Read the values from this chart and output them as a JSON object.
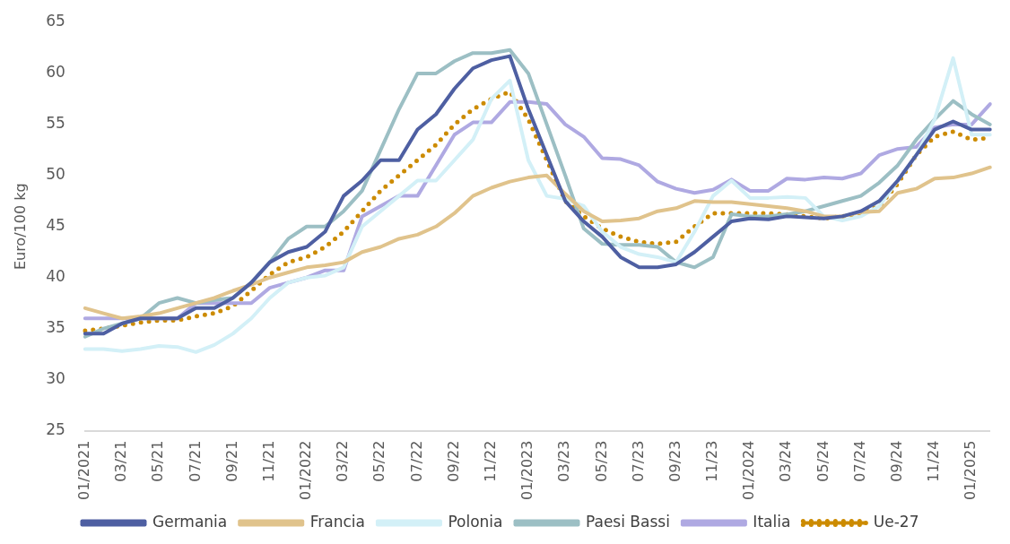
{
  "chart_data": {
    "type": "line",
    "ylabel": "Euro/100 kg",
    "categories": [
      "01/2021",
      null,
      "03/21",
      null,
      "05/21",
      null,
      "07/21",
      null,
      "09/21",
      null,
      "11/21",
      null,
      "01/2022",
      null,
      "03/22",
      null,
      "05/22",
      null,
      "07/22",
      null,
      "09/22",
      null,
      "11/22",
      null,
      "01/2023",
      null,
      "03/23",
      null,
      "05/23",
      null,
      "07/23",
      null,
      "09/23",
      null,
      "11/23",
      null,
      "01/2024",
      null,
      "03/24",
      null,
      "05/24",
      null,
      "07/24",
      null,
      "09/24",
      null,
      "11/24",
      null,
      "01/2025",
      null
    ],
    "series": [
      {
        "name": "Germania",
        "color": "#4e5fa2",
        "values": [
          34.5,
          34.5,
          35.5,
          36,
          36,
          36,
          37,
          37,
          38,
          39.5,
          41.5,
          42.5,
          43,
          44.5,
          48,
          49.5,
          51.5,
          51.5,
          54.5,
          56,
          58.5,
          60.5,
          61.3,
          61.7,
          56.5,
          52,
          47.5,
          45.5,
          44,
          42,
          41,
          41,
          41.3,
          42.5,
          44,
          45.5,
          45.8,
          45.7,
          46,
          45.9,
          45.8,
          46,
          46.5,
          47.5,
          49.5,
          52,
          54.5,
          55.3,
          54.5,
          54.5
        ]
      },
      {
        "name": "Francia",
        "color": "#e0c38c",
        "values": [
          37,
          36.5,
          36,
          36.2,
          36.5,
          37,
          37.5,
          38,
          38.7,
          39.3,
          40,
          40.5,
          41,
          41.2,
          41.5,
          42.5,
          43,
          43.8,
          44.2,
          45,
          46.3,
          48,
          48.8,
          49.4,
          49.8,
          50,
          48.2,
          46.5,
          45.5,
          45.6,
          45.8,
          46.5,
          46.8,
          47.5,
          47.4,
          47.4,
          47.2,
          47,
          46.8,
          46.5,
          46,
          46,
          46.4,
          46.5,
          48.3,
          48.7,
          49.7,
          49.8,
          50.2,
          50.8
        ]
      },
      {
        "name": "Polonia",
        "color": "#d3f0f7",
        "values": [
          33,
          33,
          32.8,
          33,
          33.3,
          33.2,
          32.7,
          33.4,
          34.5,
          36,
          38,
          39.5,
          40,
          40.2,
          41,
          45,
          46.5,
          48,
          49.5,
          49.5,
          51.5,
          53.5,
          57.5,
          59.3,
          51.5,
          48,
          47.7,
          47,
          44.5,
          43,
          42.3,
          42,
          41.5,
          44.5,
          48,
          49.5,
          47.8,
          47.8,
          47.9,
          47.8,
          46,
          45.6,
          46,
          47,
          49.5,
          52,
          55.5,
          61.5,
          54,
          54
        ]
      },
      {
        "name": "Paesi Bassi",
        "color": "#9cbfc4",
        "values": [
          34.2,
          35,
          35.5,
          36,
          37.5,
          38,
          37.5,
          37.8,
          38,
          39.5,
          41.5,
          43.8,
          45,
          45,
          46.5,
          48.5,
          52.5,
          56.5,
          60,
          60,
          61.2,
          62,
          62,
          62.3,
          60,
          55,
          50,
          44.8,
          43.3,
          43.2,
          43.2,
          43,
          41.5,
          41,
          42,
          46.2,
          46,
          46,
          46.2,
          46.5,
          47,
          47.5,
          48,
          49.3,
          51,
          53.5,
          55.5,
          57.3,
          56,
          55
        ]
      },
      {
        "name": "Italia",
        "color": "#afa9e2",
        "values": [
          36,
          36,
          36,
          36,
          36,
          36,
          37.5,
          37.5,
          37.5,
          37.5,
          39,
          39.5,
          40,
          40.7,
          40.7,
          46,
          47,
          48,
          48,
          51,
          54,
          55.2,
          55.2,
          57.2,
          57.2,
          57,
          55,
          53.8,
          51.7,
          51.6,
          51,
          49.4,
          48.7,
          48.3,
          48.6,
          49.6,
          48.5,
          48.5,
          49.7,
          49.6,
          49.8,
          49.7,
          50.2,
          52,
          52.6,
          52.8,
          54.7,
          55,
          55,
          57
        ]
      },
      {
        "name": "Ue-27",
        "color": "#cc8b00",
        "line_style": "dotted",
        "values": [
          34.8,
          35,
          35.3,
          35.6,
          35.8,
          35.8,
          36.2,
          36.5,
          37.2,
          38.7,
          40.3,
          41.5,
          42,
          43,
          44.5,
          46.5,
          48.5,
          50,
          51.5,
          53,
          55,
          56.5,
          57.5,
          58.2,
          55.5,
          51.5,
          47.5,
          46,
          44.8,
          44,
          43.5,
          43.3,
          43.5,
          45,
          46.3,
          46.3,
          46.3,
          46.3,
          46.2,
          46,
          45.8,
          46,
          46.3,
          47,
          49.2,
          52,
          53.8,
          54.3,
          53.5,
          53.7
        ]
      }
    ],
    "ylim": [
      25,
      65
    ],
    "yticks": [
      25,
      30,
      35,
      40,
      45,
      50,
      55,
      60,
      65
    ],
    "grid": false,
    "legend": "bottom",
    "marker": "none",
    "line_style": "solid"
  }
}
